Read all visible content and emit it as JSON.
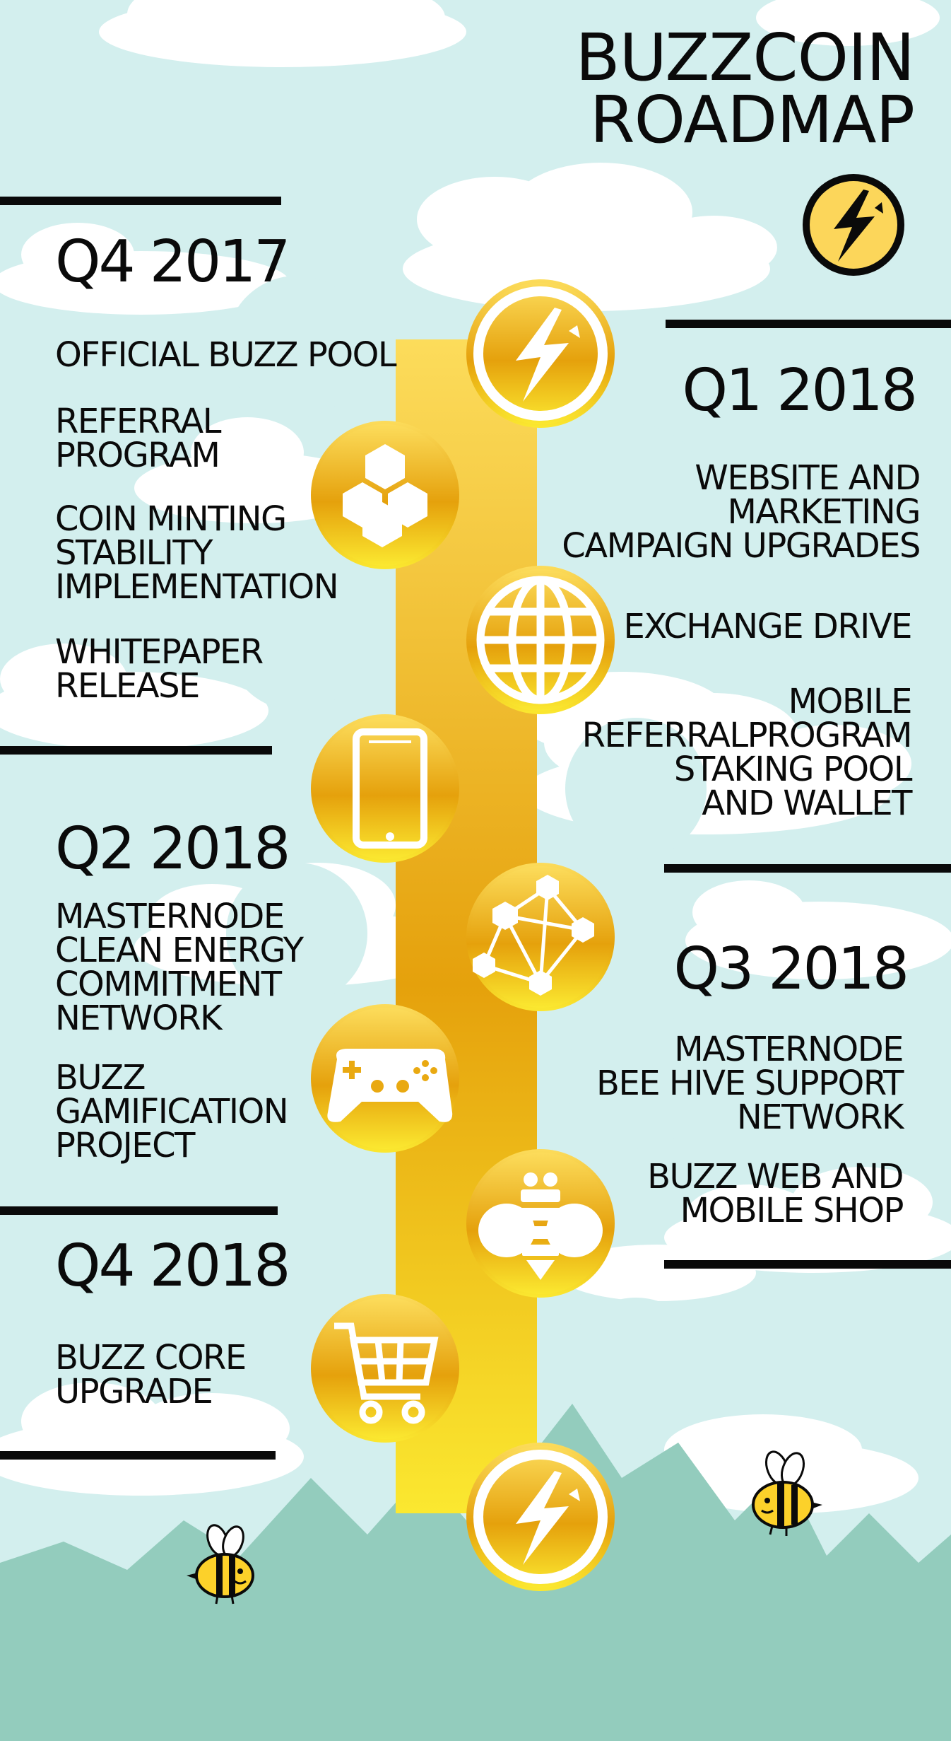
{
  "title": "BUZZCOIN\nROADMAP",
  "colors": {
    "sky": "#d3efee",
    "cloud": "#ffffff",
    "mountain": "#93ccbd",
    "timeline_top": "#fcdc5b",
    "timeline_mid": "#e5a10c",
    "timeline_bottom": "#fbe830",
    "text": "#0a0a0a",
    "icon": "#ffffff"
  },
  "timeline_icons": [
    "lightning-bolt-icon",
    "honeycomb-icon",
    "globe-icon",
    "smartphone-icon",
    "network-nodes-icon",
    "gamepad-icon",
    "bee-icon",
    "shopping-cart-icon",
    "lightning-bolt-icon"
  ],
  "logo_icon": "lightning-bolt-icon",
  "decorations": [
    "bee-icon",
    "bee-icon"
  ],
  "sections": {
    "q4_2017": {
      "heading": "Q4 2017",
      "items": [
        "OFFICIAL BUZZ POOL",
        "REFERRAL\nPROGRAM",
        "COIN MINTING\nSTABILITY\nIMPLEMENTATION",
        "WHITEPAPER\nRELEASE"
      ]
    },
    "q1_2018": {
      "heading": "Q1 2018",
      "items": [
        "WEBSITE AND\nMARKETING\nCAMPAIGN UPGRADES",
        "EXCHANGE DRIVE",
        "MOBILE\nREFERRALPROGRAM\nSTAKING POOL\nAND WALLET"
      ]
    },
    "q2_2018": {
      "heading": "Q2 2018",
      "items": [
        "MASTERNODE\nCLEAN ENERGY\nCOMMITMENT\nNETWORK",
        "BUZZ\nGAMIFICATION\nPROJECT"
      ]
    },
    "q3_2018": {
      "heading": "Q3 2018",
      "items": [
        "MASTERNODE\nBEE HIVE SUPPORT\nNETWORK",
        "BUZZ WEB AND\nMOBILE SHOP"
      ]
    },
    "q4_2018": {
      "heading": "Q4 2018",
      "items": [
        "BUZZ CORE\nUPGRADE"
      ]
    }
  }
}
